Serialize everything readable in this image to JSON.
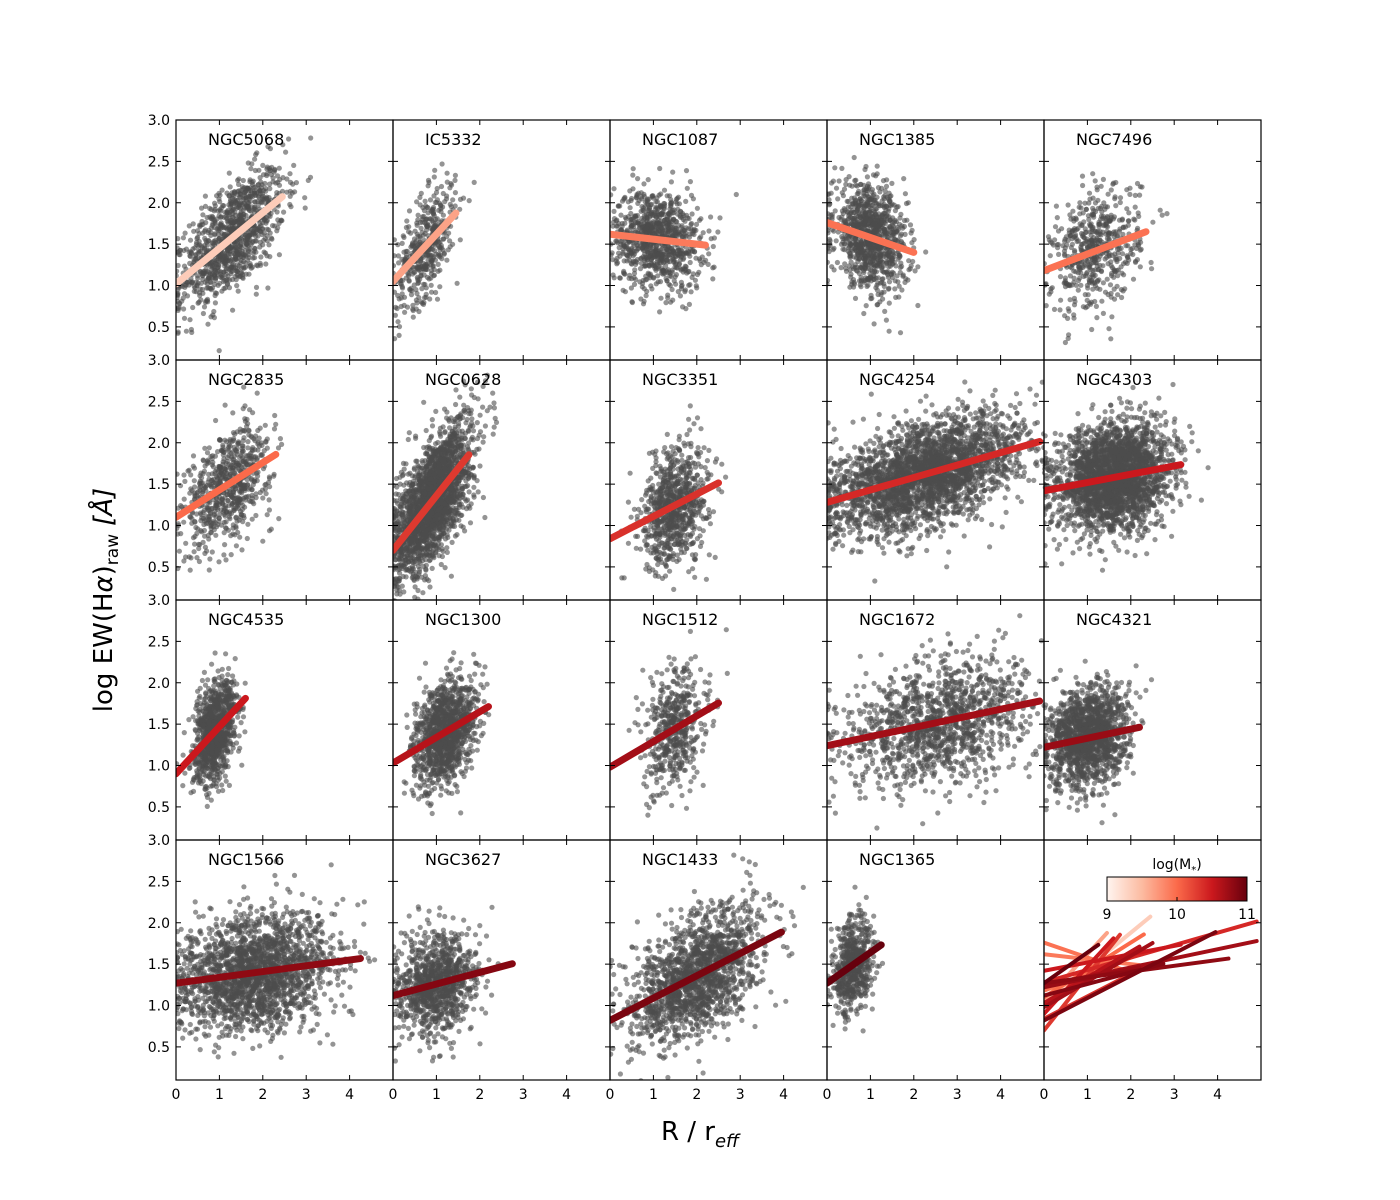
{
  "chart_data": {
    "type": "scatter",
    "figure_title": "",
    "xlabel_main": "R / r",
    "xlabel_sub": "eff",
    "ylabel_main": "log EW(H",
    "ylabel_alpha": "α",
    "ylabel_close": ")",
    "ylabel_sub": "raw",
    "ylabel_unit": "[Å]",
    "xlim": [
      0,
      5
    ],
    "ylim": [
      0.1,
      3.0
    ],
    "xticks": [
      "0",
      "1",
      "2",
      "3",
      "4"
    ],
    "yticks": [
      "0.5",
      "1.0",
      "1.5",
      "2.0",
      "2.5",
      "3.0"
    ],
    "scatter_color": "#4d4d4d",
    "colorbar": {
      "label": "log(M",
      "label_sub": "*",
      "label_close": ")",
      "range": [
        9,
        11
      ],
      "ticks": [
        "9",
        "10",
        "11"
      ],
      "colors": [
        "#fff5f0",
        "#fcbba1",
        "#fb6a4a",
        "#cb181d",
        "#67000d"
      ]
    },
    "panels": [
      {
        "name": "NGC5068",
        "slope": 0.43,
        "intercept": 1.02,
        "xmax": 2.45,
        "logM": 9.35,
        "n": 1100,
        "xmean": 1.3,
        "xsd": 0.6,
        "scatter": 0.32
      },
      {
        "name": "IC5332",
        "slope": 0.57,
        "intercept": 1.05,
        "xmax": 1.45,
        "logM": 9.65,
        "n": 450,
        "xmean": 0.75,
        "xsd": 0.35,
        "scatter": 0.3
      },
      {
        "name": "NGC1087",
        "slope": -0.06,
        "intercept": 1.62,
        "xmax": 2.2,
        "logM": 9.9,
        "n": 900,
        "xmean": 1.1,
        "xsd": 0.5,
        "scatter": 0.3
      },
      {
        "name": "NGC1385",
        "slope": -0.18,
        "intercept": 1.76,
        "xmax": 2.0,
        "logM": 9.95,
        "n": 1000,
        "xmean": 1.0,
        "xsd": 0.42,
        "scatter": 0.3
      },
      {
        "name": "NGC7496",
        "slope": 0.2,
        "intercept": 1.18,
        "xmax": 2.35,
        "logM": 9.95,
        "n": 550,
        "xmean": 1.2,
        "xsd": 0.5,
        "scatter": 0.35
      },
      {
        "name": "NGC2835",
        "slope": 0.33,
        "intercept": 1.1,
        "xmax": 2.3,
        "logM": 10.0,
        "n": 700,
        "xmean": 1.2,
        "xsd": 0.5,
        "scatter": 0.32
      },
      {
        "name": "NGC0628",
        "slope": 0.66,
        "intercept": 0.7,
        "xmax": 1.75,
        "logM": 10.3,
        "n": 2200,
        "xmean": 0.9,
        "xsd": 0.45,
        "scatter": 0.35
      },
      {
        "name": "NGC3351",
        "slope": 0.27,
        "intercept": 0.84,
        "xmax": 2.5,
        "logM": 10.35,
        "n": 800,
        "xmean": 1.5,
        "xsd": 0.38,
        "scatter": 0.35
      },
      {
        "name": "NGC4254",
        "slope": 0.15,
        "intercept": 1.28,
        "xmax": 4.9,
        "logM": 10.4,
        "n": 2800,
        "xmean": 2.3,
        "xsd": 1.1,
        "scatter": 0.3
      },
      {
        "name": "NGC4303",
        "slope": 0.1,
        "intercept": 1.42,
        "xmax": 3.15,
        "logM": 10.5,
        "n": 2600,
        "xmean": 1.6,
        "xsd": 0.65,
        "scatter": 0.32
      },
      {
        "name": "NGC4535",
        "slope": 0.57,
        "intercept": 0.9,
        "xmax": 1.6,
        "logM": 10.5,
        "n": 1000,
        "xmean": 0.9,
        "xsd": 0.25,
        "scatter": 0.28
      },
      {
        "name": "NGC1300",
        "slope": 0.31,
        "intercept": 1.03,
        "xmax": 2.2,
        "logM": 10.6,
        "n": 1200,
        "xmean": 1.2,
        "xsd": 0.35,
        "scatter": 0.3
      },
      {
        "name": "NGC1512",
        "slope": 0.31,
        "intercept": 0.98,
        "xmax": 2.5,
        "logM": 10.7,
        "n": 500,
        "xmean": 1.5,
        "xsd": 0.35,
        "scatter": 0.35
      },
      {
        "name": "NGC1672",
        "slope": 0.11,
        "intercept": 1.24,
        "xmax": 4.9,
        "logM": 10.7,
        "n": 1300,
        "xmean": 2.5,
        "xsd": 1.1,
        "scatter": 0.38
      },
      {
        "name": "NGC4321",
        "slope": 0.11,
        "intercept": 1.22,
        "xmax": 2.2,
        "logM": 10.75,
        "n": 1500,
        "xmean": 1.0,
        "xsd": 0.45,
        "scatter": 0.3
      },
      {
        "name": "NGC1566",
        "slope": 0.07,
        "intercept": 1.27,
        "xmax": 4.25,
        "logM": 10.8,
        "n": 2000,
        "xmean": 1.8,
        "xsd": 0.9,
        "scatter": 0.35
      },
      {
        "name": "NGC3627",
        "slope": 0.14,
        "intercept": 1.12,
        "xmax": 2.75,
        "logM": 10.85,
        "n": 1000,
        "xmean": 1.0,
        "xsd": 0.45,
        "scatter": 0.3
      },
      {
        "name": "NGC1433",
        "slope": 0.27,
        "intercept": 0.82,
        "xmax": 3.95,
        "logM": 10.9,
        "n": 1600,
        "xmean": 2.0,
        "xsd": 0.75,
        "scatter": 0.35
      },
      {
        "name": "NGC1365",
        "slope": 0.37,
        "intercept": 1.27,
        "xmax": 1.25,
        "logM": 11.0,
        "n": 600,
        "xmean": 0.6,
        "xsd": 0.22,
        "scatter": 0.3
      },
      {
        "name": "",
        "summary": true
      }
    ]
  }
}
